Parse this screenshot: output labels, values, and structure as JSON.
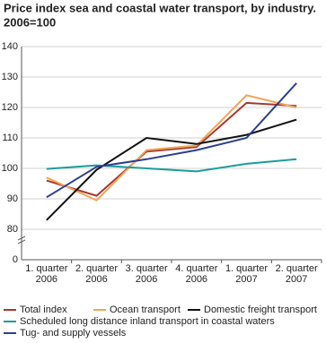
{
  "chart_data": {
    "type": "line",
    "title": "Price index sea and coastal water transport, by industry.",
    "subtitle": "2006=100",
    "categories": [
      "1. quarter\n2006",
      "2. quarter\n2006",
      "3. quarter\n2006",
      "4. quarter\n2006",
      "1. quarter\n2007",
      "2. quarter\n2007"
    ],
    "series": [
      {
        "name": "Total index",
        "color": "#a8362e",
        "values": [
          96,
          91,
          105.5,
          107,
          121.5,
          120.5
        ]
      },
      {
        "name": "Ocean transport",
        "color": "#f0a55a",
        "values": [
          97,
          89.5,
          106,
          107.5,
          124,
          120
        ]
      },
      {
        "name": "Domestic freight transport",
        "color": "#111111",
        "values": [
          83,
          99.5,
          110,
          108,
          111,
          116
        ]
      },
      {
        "name": "Scheduled long distance inland transport in coastal waters",
        "color": "#1a9c9a",
        "values": [
          99.8,
          101,
          100,
          99,
          101.5,
          103
        ]
      },
      {
        "name": "Tug- and supply vessels",
        "color": "#2b3f8f",
        "values": [
          90.5,
          100.5,
          103,
          106,
          110,
          128
        ]
      }
    ],
    "ylim": [
      0,
      140
    ],
    "yticks": [
      0,
      80,
      90,
      100,
      110,
      120,
      130,
      140
    ],
    "y_break": [
      0,
      80
    ],
    "grid": true
  }
}
